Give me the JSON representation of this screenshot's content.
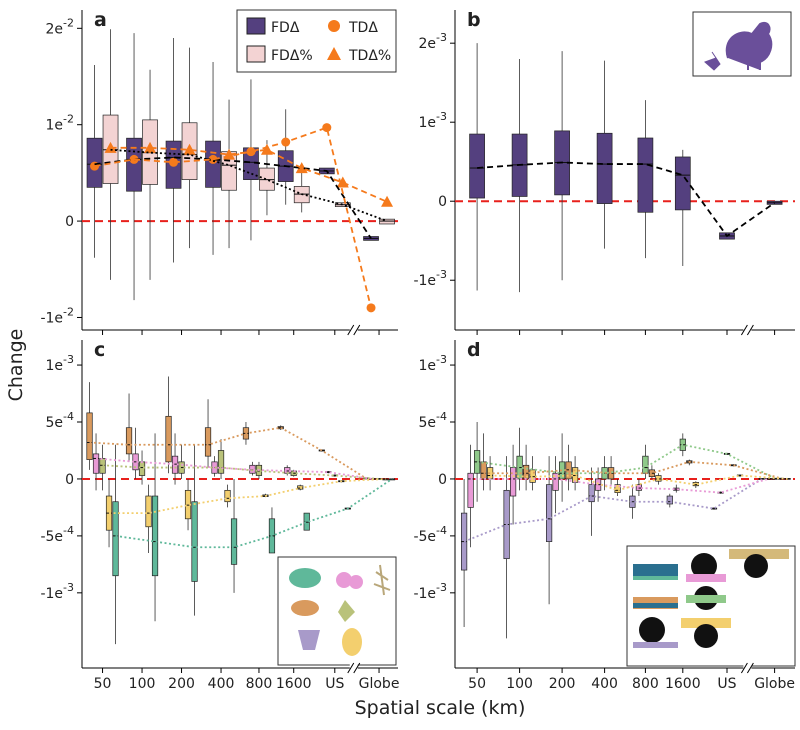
{
  "ylabel": "Change",
  "xlabel": "Spatial scale (km)",
  "chart_data": [
    {
      "type": "box",
      "label": "a",
      "ylim": [
        -0.0113,
        0.0219
      ],
      "yticks": [
        {
          "value": 0.02,
          "label": "2e-2"
        },
        {
          "value": 0.01,
          "label": "1e-2"
        },
        0,
        {
          "value": -0.01,
          "label": "-1e-2"
        }
      ],
      "hline": 0,
      "hline_color": "#e8201c",
      "series": [
        {
          "name": "FDΔ",
          "color": "#54407f",
          "line_color": "#000000",
          "line": "dashed",
          "boxes": [
            [
              -0.0038,
              0.0035,
              0.0059,
              0.0086,
              0.0162
            ],
            [
              -0.0082,
              0.0031,
              0.0064,
              0.0086,
              0.0195
            ],
            [
              -0.0043,
              0.0034,
              0.0066,
              0.0083,
              0.019
            ],
            [
              -0.0035,
              0.0035,
              0.0064,
              0.0083,
              0.0165
            ],
            [
              -0.002,
              0.0043,
              0.0061,
              0.0076,
              0.0147
            ],
            [
              0.0017,
              0.0041,
              0.0057,
              0.0073,
              0.0116
            ],
            [
              0.0049,
              0.0049,
              0.0052,
              0.0055,
              0.0055
            ],
            [
              -0.002,
              -0.002,
              -0.0018,
              -0.0016,
              -0.0016
            ]
          ]
        },
        {
          "name": "FDΔ%",
          "color": "#f3d3d3",
          "line_color": "#000000",
          "line": "dotted",
          "boxes": [
            [
              -0.0061,
              0.0039,
              0.0074,
              0.011,
              0.0199
            ],
            [
              -0.0061,
              0.0038,
              0.0071,
              0.0105,
              0.0157
            ],
            [
              -0.0028,
              0.0043,
              0.0069,
              0.0102,
              0.018
            ],
            [
              -0.0028,
              0.0032,
              0.0058,
              0.0072,
              0.0126
            ],
            [
              0.0006,
              0.0032,
              0.0043,
              0.0055,
              0.0084
            ],
            [
              0.0009,
              0.0019,
              0.0028,
              0.0036,
              0.0055
            ],
            [
              0.0015,
              0.0015,
              0.0017,
              0.0019,
              0.0019
            ],
            [
              -0.0003,
              -0.0003,
              0,
              0.0002,
              0.0002
            ]
          ]
        },
        {
          "name": "TDΔ",
          "color": "#f57a1c",
          "line": "dashed",
          "marker": "circle",
          "values": [
            0.0057,
            0.0064,
            0.0061,
            0.0064,
            0.0072,
            0.0082,
            0.0097,
            -0.009
          ]
        },
        {
          "name": "TDΔ%",
          "color": "#f57a1c",
          "line": "dashed",
          "marker": "triangle",
          "values": [
            0.0076,
            0.0076,
            0.0074,
            0.0069,
            0.0074,
            0.0055,
            0.004,
            0.002
          ]
        }
      ]
    },
    {
      "type": "box",
      "label": "b",
      "ylim": [
        -0.00163,
        0.00242
      ],
      "yticks": [
        {
          "value": 0.002,
          "label": "2e-3"
        },
        {
          "value": 0.001,
          "label": "1e-3"
        },
        0,
        {
          "value": -0.001,
          "label": "-1e-3"
        }
      ],
      "hline": 0,
      "hline_color": "#e8201c",
      "series": [
        {
          "color": "#54407f",
          "line_color": "#000000",
          "line": "dashed",
          "boxes": [
            [
              -0.00113,
              4e-05,
              0.00042,
              0.00085,
              0.002
            ],
            [
              -0.00115,
              6e-05,
              0.00046,
              0.00085,
              0.0018
            ],
            [
              -0.001,
              8e-05,
              0.00049,
              0.00089,
              0.0019
            ],
            [
              -0.0006,
              -3e-05,
              0.00047,
              0.00086,
              0.00178
            ],
            [
              -0.00072,
              -0.00014,
              0.00047,
              0.0008,
              0.00128
            ],
            [
              -0.00082,
              -0.00011,
              0.00033,
              0.00056,
              0.00065
            ],
            [
              -0.00048,
              -0.00048,
              -0.00044,
              -0.0004,
              -0.0004
            ],
            [
              -4e-05,
              -4e-05,
              -2e-05,
              0,
              0
            ]
          ]
        }
      ]
    },
    {
      "type": "box",
      "label": "c",
      "ylim": [
        -0.00166,
        0.00122
      ],
      "categories": [
        "50",
        "100",
        "200",
        "400",
        "800",
        "1600",
        "US",
        "Globe"
      ],
      "yticks": [
        {
          "value": 0.001,
          "label": "1e-3"
        },
        {
          "value": 0.0005,
          "label": "5e-4"
        },
        0,
        {
          "value": -0.0005,
          "label": "-5e-4"
        },
        {
          "value": -0.001,
          "label": "-1e-3"
        }
      ],
      "hline": 0,
      "hline_color": "#e8201c",
      "series": [
        {
          "color": "#d99a5e",
          "line": "dotted",
          "boxes": [
            [
              8e-05,
              0.00017,
              0.00032,
              0.00058,
              0.00085
            ],
            [
              0.00015,
              0.00022,
              0.0003,
              0.00045,
              0.00075
            ],
            [
              5e-05,
              0.00015,
              0.0003,
              0.00055,
              0.0009
            ],
            [
              0.0001,
              0.0002,
              0.0003,
              0.00045,
              0.0007
            ],
            [
              0.0003,
              0.00035,
              0.0004,
              0.00045,
              0.0005
            ],
            [
              0.00043,
              0.00044,
              0.00045,
              0.00046,
              0.00047
            ],
            [
              0.00024,
              0.000245,
              0.00025,
              0.000255,
              0.00026
            ],
            [
              0,
              0,
              5e-06,
              1e-05,
              1e-05
            ]
          ]
        },
        {
          "color": "#e89ad6",
          "line": "dotted",
          "boxes": [
            [
              -0.0001,
              5e-05,
              0.00018,
              0.00022,
              0.0004
            ],
            [
              0,
              8e-05,
              0.00015,
              0.00022,
              0.00045
            ],
            [
              -5e-05,
              5e-05,
              0.00013,
              0.0002,
              0.0004
            ],
            [
              2e-05,
              5e-05,
              0.0001,
              0.00015,
              0.0002
            ],
            [
              3e-05,
              5e-05,
              8e-05,
              0.00012,
              0.00015
            ],
            [
              3e-05,
              5e-05,
              7e-05,
              0.0001,
              0.00012
            ],
            [
              5e-05,
              5.5e-05,
              6e-05,
              6.5e-05,
              7e-05
            ],
            [
              0,
              0,
              0,
              5e-06,
              5e-06
            ]
          ]
        },
        {
          "color": "#b9c27a",
          "line": "dotted",
          "boxes": [
            [
              -0.0001,
              5e-05,
              0.00012,
              0.00018,
              0.0003
            ],
            [
              -5e-05,
              3e-05,
              0.0001,
              0.00015,
              0.00025
            ],
            [
              0,
              5e-05,
              0.0001,
              0.00015,
              0.0003
            ],
            [
              0,
              5e-05,
              0.0001,
              0.00025,
              0.00035
            ],
            [
              0,
              3e-05,
              7e-05,
              0.00012,
              0.00015
            ],
            [
              2e-05,
              3e-05,
              5e-05,
              7e-05,
              8e-05
            ],
            [
              2e-05,
              2.5e-05,
              3e-05,
              3.5e-05,
              4e-05
            ],
            [
              0,
              0,
              0,
              5e-06,
              5e-06
            ]
          ]
        },
        {
          "color": "#f3cf6e",
          "line": "dotted",
          "boxes": [
            [
              -0.0006,
              -0.00045,
              -0.0003,
              -0.00015,
              0
            ],
            [
              -0.00065,
              -0.00042,
              -0.0003,
              -0.00015,
              -5e-05
            ],
            [
              -0.00045,
              -0.00035,
              -0.00023,
              -0.0001,
              0
            ],
            [
              -0.00025,
              -0.0002,
              -0.00017,
              -0.0001,
              -5e-05
            ],
            [
              -0.00016,
              -0.000155,
              -0.00015,
              -0.00014,
              -0.00013
            ],
            [
              -0.0001,
              -9e-05,
              -8e-05,
              -6e-05,
              -5e-05
            ],
            [
              -3e-05,
              -2.5e-05,
              -2e-05,
              -1.5e-05,
              -1e-05
            ],
            [
              -5e-06,
              -5e-06,
              0,
              0,
              5e-06
            ]
          ]
        },
        {
          "color": "#5fb89a",
          "line": "dotted",
          "boxes": [
            [
              -0.00145,
              -0.00085,
              -0.0005,
              -0.0002,
              0.0003
            ],
            [
              -0.00125,
              -0.00085,
              -0.00055,
              -0.00015,
              0.0004
            ],
            [
              -0.0012,
              -0.0009,
              -0.0006,
              -0.0002,
              0.0003
            ],
            [
              -0.001,
              -0.00075,
              -0.0006,
              -0.00035,
              0
            ],
            [
              -0.00065,
              -0.00065,
              -0.0005,
              -0.00035,
              -0.00025
            ],
            [
              -0.00045,
              -0.00045,
              -0.00038,
              -0.0003,
              -0.0003
            ],
            [
              -0.00027,
              -0.000265,
              -0.00026,
              -0.000255,
              -0.00025
            ],
            [
              -5e-06,
              0,
              0,
              0,
              5e-06
            ]
          ]
        }
      ]
    },
    {
      "type": "box",
      "label": "d",
      "ylim": [
        -0.00166,
        0.00122
      ],
      "categories": [
        "50",
        "100",
        "200",
        "400",
        "800",
        "1600",
        "US",
        "Globe"
      ],
      "yticks": [
        {
          "value": 0.001,
          "label": "1e-3"
        },
        {
          "value": 0.0005,
          "label": "5e-4"
        },
        0,
        {
          "value": -0.0005,
          "label": "-5e-4"
        },
        {
          "value": -0.001,
          "label": "-1e-3"
        }
      ],
      "hline": 0,
      "hline_color": "#e8201c",
      "series": [
        {
          "color": "#a89ac9",
          "line": "dotted",
          "boxes": [
            [
              -0.0013,
              -0.0008,
              -0.00055,
              -0.0003,
              0
            ],
            [
              -0.0014,
              -0.0007,
              -0.0004,
              -0.0001,
              0.0002
            ],
            [
              -0.0011,
              -0.00055,
              -0.00035,
              -5e-05,
              0.0002
            ],
            [
              -0.0005,
              -0.0002,
              -0.00015,
              -5e-05,
              0.0001
            ],
            [
              -0.00035,
              -0.00025,
              -0.0002,
              -0.00015,
              -5e-05
            ],
            [
              -0.00025,
              -0.00022,
              -0.0002,
              -0.00015,
              -0.00013
            ],
            [
              -0.00027,
              -0.000265,
              -0.00026,
              -0.000255,
              -0.00025
            ],
            [
              -5e-06,
              0,
              0,
              5e-06,
              5e-06
            ]
          ]
        },
        {
          "color": "#e89ad6",
          "line": "dotted",
          "boxes": [
            [
              -0.0006,
              -0.00025,
              0,
              5e-05,
              0.0003
            ],
            [
              -0.0004,
              -0.00015,
              0,
              0.0001,
              0.0003
            ],
            [
              -0.0003,
              -0.0001,
              0,
              5e-05,
              0.0002
            ],
            [
              -0.0002,
              -0.0001,
              -5e-05,
              0,
              0.0001
            ],
            [
              -0.00015,
              -0.0001,
              -8e-05,
              -5e-05,
              0
            ],
            [
              -0.00012,
              -0.0001,
              -9e-05,
              -8e-05,
              -5e-05
            ],
            [
              -0.00013,
              -0.000125,
              -0.00012,
              -0.000115,
              -0.00011
            ],
            [
              0,
              0,
              0,
              5e-06,
              5e-06
            ]
          ]
        },
        {
          "color": "#8fc98a",
          "line": "dotted",
          "boxes": [
            [
              -0.0002,
              5e-05,
              0.00015,
              0.00025,
              0.0005
            ],
            [
              -0.0001,
              0,
              0.0001,
              0.0002,
              0.00045
            ],
            [
              -0.0002,
              0,
              5e-05,
              0.00015,
              0.0004
            ],
            [
              -0.0001,
              0,
              5e-05,
              0.0001,
              0.0002
            ],
            [
              0,
              5e-05,
              0.0001,
              0.0002,
              0.0003
            ],
            [
              0.0002,
              0.00025,
              0.0003,
              0.00035,
              0.0004
            ],
            [
              0.00021,
              0.000215,
              0.00022,
              0.000225,
              0.00023
            ],
            [
              0,
              0,
              5e-06,
              5e-06,
              1e-05
            ]
          ]
        },
        {
          "color": "#d99a5e",
          "line": "dotted",
          "boxes": [
            [
              -0.0001,
              0,
              5e-05,
              0.00015,
              0.0004
            ],
            [
              -0.0001,
              0,
              5e-05,
              0.00012,
              0.0003
            ],
            [
              -0.0001,
              0,
              8e-05,
              0.00015,
              0.0003
            ],
            [
              -5e-05,
              0,
              5e-05,
              0.0001,
              0.0002
            ],
            [
              0,
              2e-05,
              5e-05,
              8e-05,
              0.00012
            ],
            [
              0.00012,
              0.00014,
              0.00015,
              0.00016,
              0.00017
            ],
            [
              0.00011,
              0.000115,
              0.00012,
              0.000125,
              0.00013
            ],
            [
              0,
              0,
              5e-06,
              5e-06,
              1e-05
            ]
          ]
        },
        {
          "color": "#f3cf6e",
          "line": "dotted",
          "boxes": [
            [
              -0.0001,
              0,
              3e-05,
              0.0001,
              0.0002
            ],
            [
              -0.0001,
              -3e-05,
              2e-05,
              8e-05,
              0.0002
            ],
            [
              -0.0001,
              -3e-05,
              3e-05,
              0.0001,
              0.0002
            ],
            [
              -0.00015,
              -0.00012,
              -0.0001,
              -5e-05,
              0
            ],
            [
              -5e-05,
              -2e-05,
              0,
              3e-05,
              5e-05
            ],
            [
              -8e-05,
              -6e-05,
              -5e-05,
              -3e-05,
              -2e-05
            ],
            [
              2e-05,
              2.5e-05,
              3e-05,
              3.5e-05,
              4e-05
            ],
            [
              0,
              0,
              0,
              5e-06,
              5e-06
            ]
          ]
        }
      ]
    }
  ]
}
